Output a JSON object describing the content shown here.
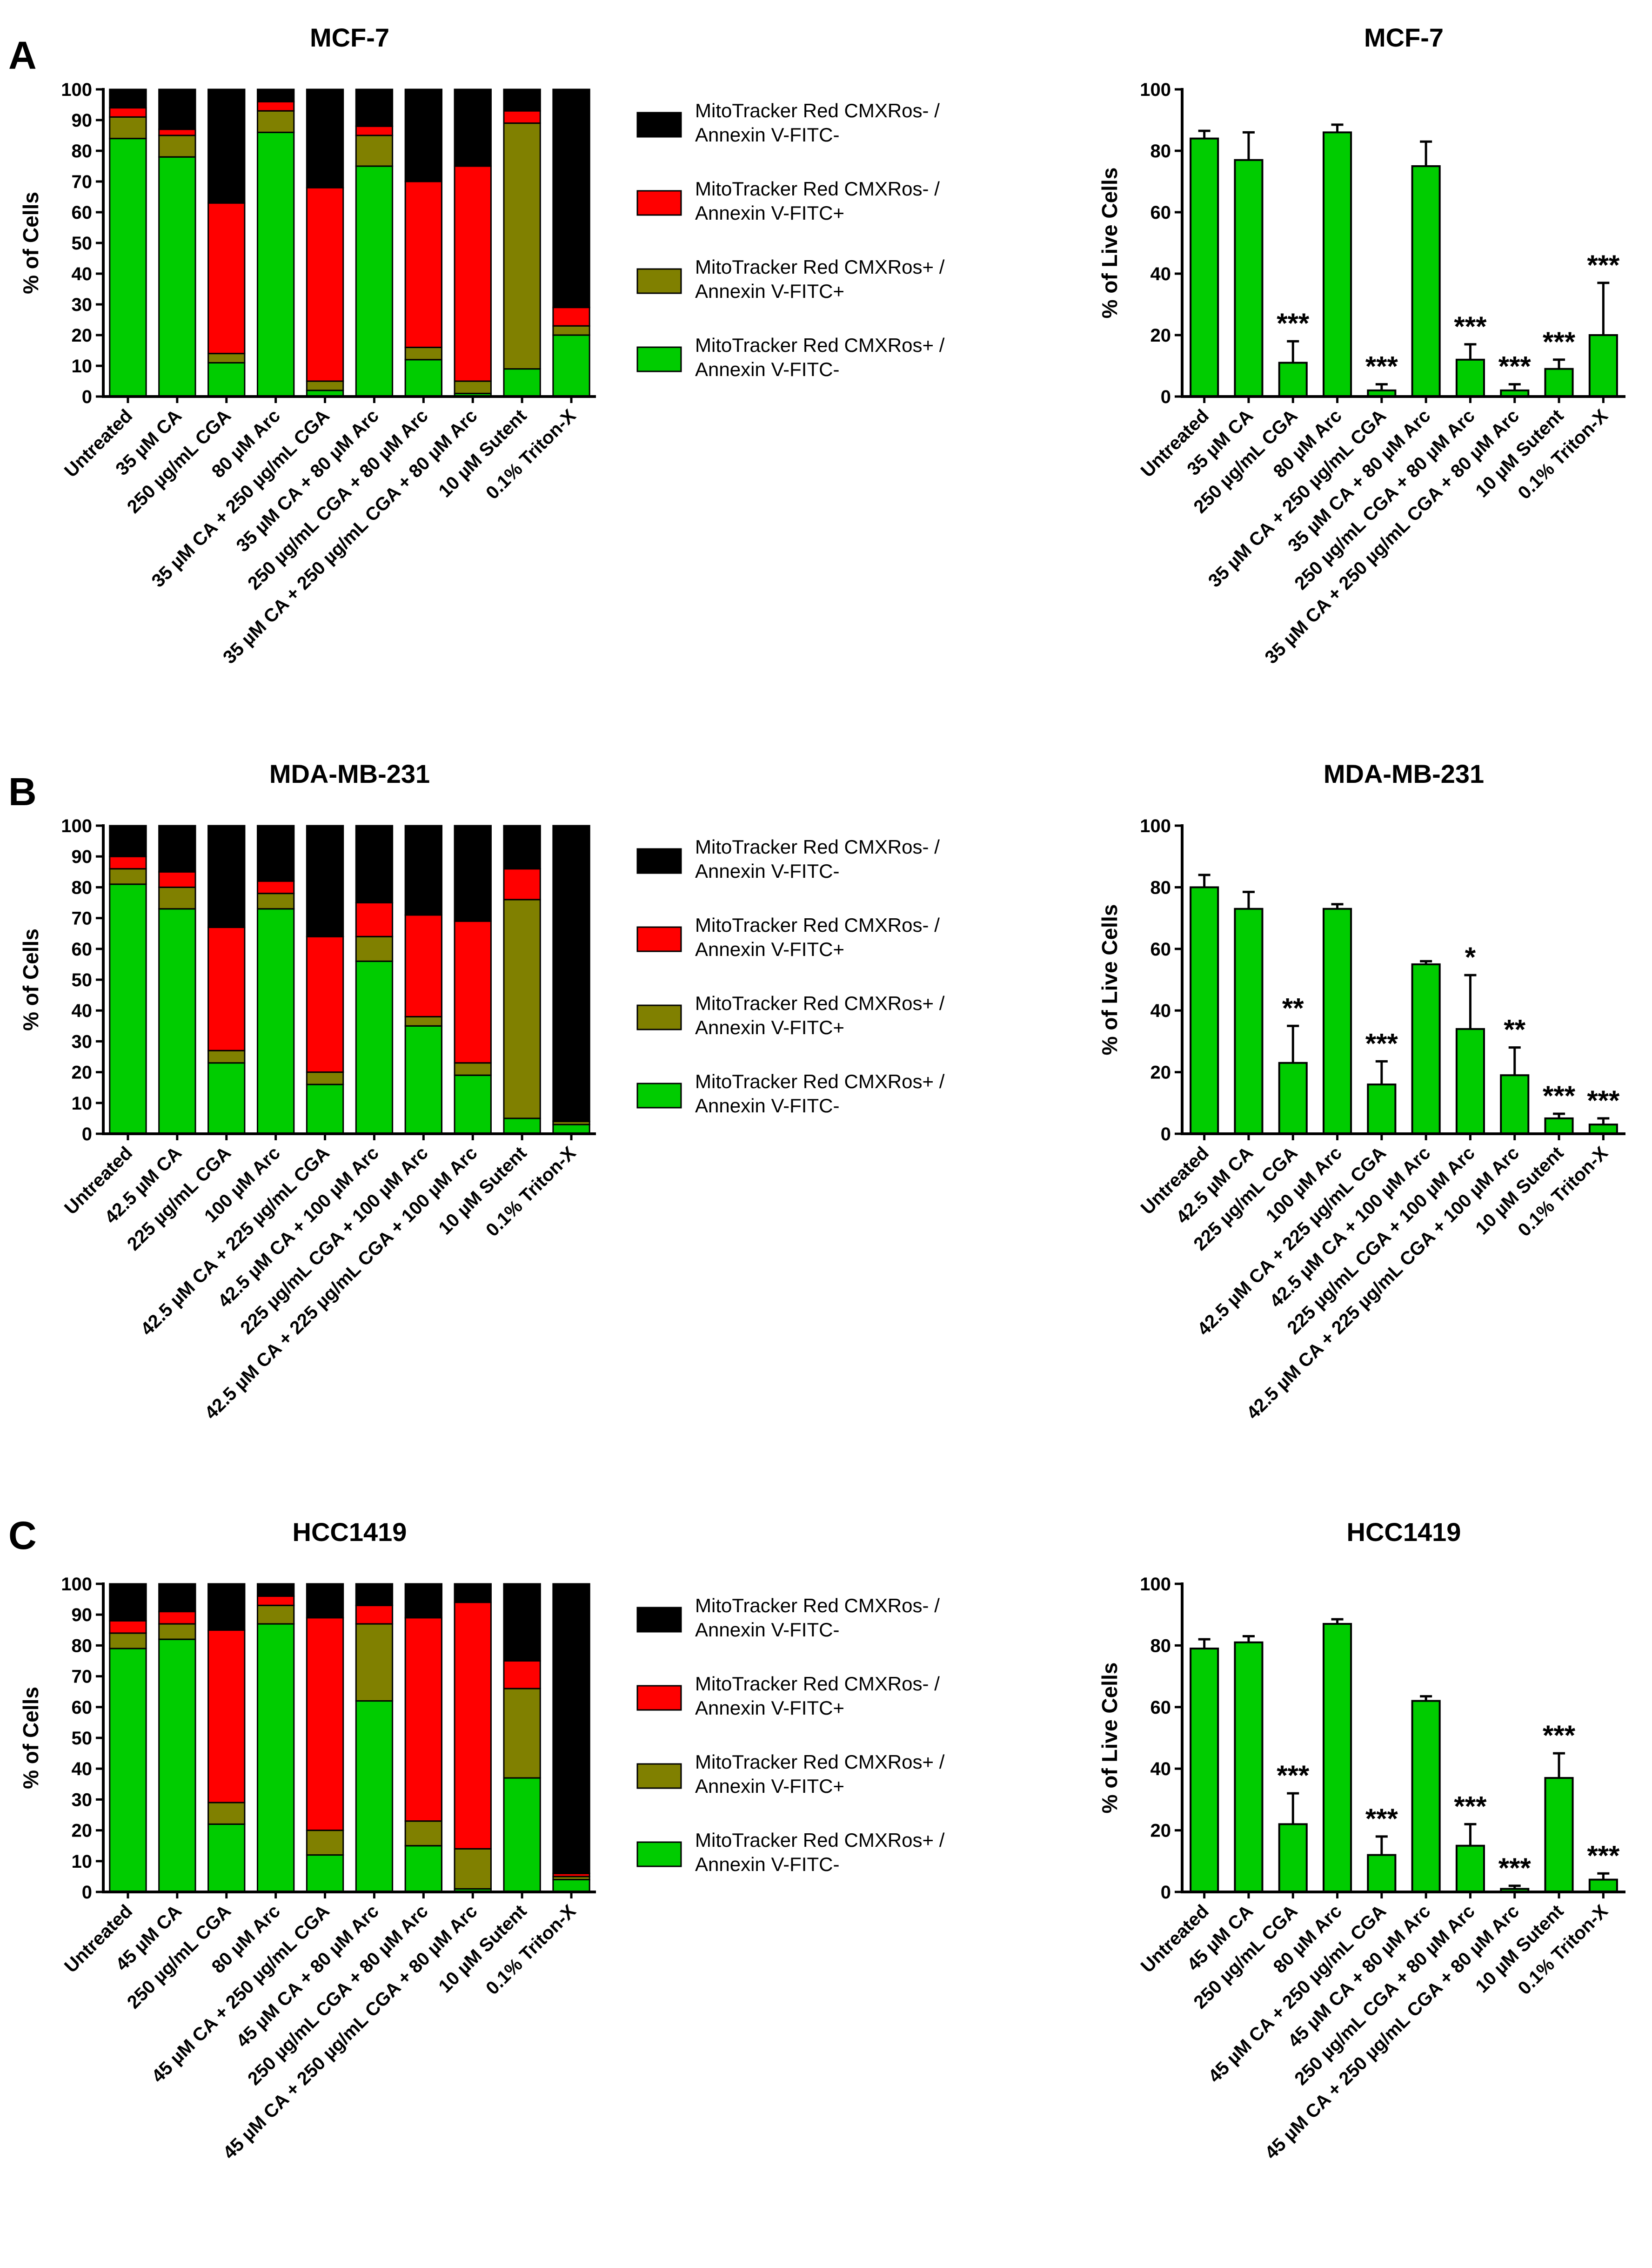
{
  "colors": {
    "black": "#000000",
    "red": "#ff0000",
    "olive": "#808000",
    "green": "#00cc00",
    "axis": "#000000"
  },
  "legend": [
    {
      "line1": "MitoTracker Red CMXRos- /",
      "line2": "Annexin V-FITC-",
      "color": "#000000"
    },
    {
      "line1": "MitoTracker Red CMXRos- /",
      "line2": "Annexin V-FITC+",
      "color": "#ff0000"
    },
    {
      "line1": "MitoTracker Red CMXRos+ /",
      "line2": "Annexin V-FITC+",
      "color": "#808000"
    },
    {
      "line1": "MitoTracker Red CMXRos+ /",
      "line2": "Annexin V-FITC-",
      "color": "#00cc00"
    }
  ],
  "chart_data": [
    {
      "type": "bar",
      "stacked": true,
      "panel": "A",
      "title": "MCF-7",
      "ylabel": "% of Cells",
      "ylim": [
        0,
        100
      ],
      "yticks": [
        0,
        10,
        20,
        30,
        40,
        50,
        60,
        70,
        80,
        90,
        100
      ],
      "categories": [
        "Untreated",
        "35 µM CA",
        "250 µg/mL CGA",
        "80 µM Arc",
        "35 µM CA + 250 µg/mL CGA",
        "35 µM CA + 80 µM Arc",
        "250 µg/mL CGA + 80 µM Arc",
        "35 µM CA + 250 µg/mL CGA + 80 µM Arc",
        "10 µM Sutent",
        "0.1% Triton-X"
      ],
      "series": [
        {
          "name": "MitoTracker Red CMXRos+ / Annexin V-FITC-",
          "color": "#00cc00",
          "values": [
            84,
            78,
            11,
            86,
            2,
            75,
            12,
            1,
            9,
            20
          ]
        },
        {
          "name": "MitoTracker Red CMXRos+ / Annexin V-FITC+",
          "color": "#808000",
          "values": [
            7,
            7,
            3,
            7,
            3,
            10,
            4,
            4,
            80,
            3
          ]
        },
        {
          "name": "MitoTracker Red CMXRos- / Annexin V-FITC+",
          "color": "#ff0000",
          "values": [
            3,
            2,
            49,
            3,
            63,
            3,
            54,
            70,
            4,
            6
          ]
        },
        {
          "name": "MitoTracker Red CMXRos- / Annexin V-FITC-",
          "color": "#000000",
          "values": [
            6,
            13,
            37,
            4,
            32,
            12,
            30,
            25,
            7,
            71
          ]
        }
      ]
    },
    {
      "type": "bar",
      "panel": "A",
      "title": "MCF-7",
      "ylabel": "% of Live Cells",
      "ylim": [
        0,
        100
      ],
      "yticks": [
        0,
        20,
        40,
        60,
        80,
        100
      ],
      "categories": [
        "Untreated",
        "35 µM CA",
        "250 µg/mL CGA",
        "80 µM Arc",
        "35 µM CA + 250 µg/mL CGA",
        "35 µM CA + 80 µM Arc",
        "250 µg/mL CGA + 80 µM Arc",
        "35 µM CA + 250 µg/mL CGA + 80 µM Arc",
        "10 µM Sutent",
        "0.1% Triton-X"
      ],
      "values": [
        84,
        77,
        11,
        86,
        2,
        75,
        12,
        2,
        9,
        20
      ],
      "errors": [
        2.5,
        9,
        7,
        2.5,
        2,
        8,
        5,
        2,
        3,
        17
      ],
      "significance": [
        "",
        "",
        "***",
        "",
        "***",
        "",
        "***",
        "***",
        "***",
        "***"
      ],
      "color": "#00cc00"
    },
    {
      "type": "bar",
      "stacked": true,
      "panel": "B",
      "title": "MDA-MB-231",
      "ylabel": "% of Cells",
      "ylim": [
        0,
        100
      ],
      "yticks": [
        0,
        10,
        20,
        30,
        40,
        50,
        60,
        70,
        80,
        90,
        100
      ],
      "categories": [
        "Untreated",
        "42.5 µM CA",
        "225 µg/mL CGA",
        "100 µM Arc",
        "42.5 µM CA + 225 µg/mL CGA",
        "42.5 µM CA + 100 µM Arc",
        "225 µg/mL CGA + 100 µM Arc",
        "42.5 µM CA + 225 µg/mL CGA + 100 µM Arc",
        "10 µM Sutent",
        "0.1% Triton-X"
      ],
      "series": [
        {
          "name": "MitoTracker Red CMXRos+ / Annexin V-FITC-",
          "color": "#00cc00",
          "values": [
            81,
            73,
            23,
            73,
            16,
            56,
            35,
            19,
            5,
            3
          ]
        },
        {
          "name": "MitoTracker Red CMXRos+ / Annexin V-FITC+",
          "color": "#808000",
          "values": [
            5,
            7,
            4,
            5,
            4,
            8,
            3,
            4,
            71,
            1
          ]
        },
        {
          "name": "MitoTracker Red CMXRos- / Annexin V-FITC+",
          "color": "#ff0000",
          "values": [
            4,
            5,
            40,
            4,
            44,
            11,
            33,
            46,
            10,
            0
          ]
        },
        {
          "name": "MitoTracker Red CMXRos- / Annexin V-FITC-",
          "color": "#000000",
          "values": [
            10,
            15,
            33,
            18,
            36,
            25,
            29,
            31,
            14,
            96
          ]
        }
      ]
    },
    {
      "type": "bar",
      "panel": "B",
      "title": "MDA-MB-231",
      "ylabel": "% of Live Cells",
      "ylim": [
        0,
        100
      ],
      "yticks": [
        0,
        20,
        40,
        60,
        80,
        100
      ],
      "categories": [
        "Untreated",
        "42.5 µM CA",
        "225 µg/mL CGA",
        "100 µM Arc",
        "42.5 µM CA + 225 µg/mL CGA",
        "42.5 µM CA + 100 µM Arc",
        "225 µg/mL CGA + 100 µM Arc",
        "42.5 µM CA + 225 µg/mL CGA + 100 µM Arc",
        "10 µM Sutent",
        "0.1% Triton-X"
      ],
      "values": [
        80,
        73,
        23,
        73,
        16,
        55,
        34,
        19,
        5,
        3
      ],
      "errors": [
        4,
        5.5,
        12,
        1.5,
        7.5,
        1,
        17.5,
        9,
        1.5,
        2
      ],
      "significance": [
        "",
        "",
        "**",
        "",
        "***",
        "",
        "*",
        "**",
        "***",
        "***"
      ],
      "color": "#00cc00"
    },
    {
      "type": "bar",
      "stacked": true,
      "panel": "C",
      "title": "HCC1419",
      "ylabel": "% of Cells",
      "ylim": [
        0,
        100
      ],
      "yticks": [
        0,
        10,
        20,
        30,
        40,
        50,
        60,
        70,
        80,
        90,
        100
      ],
      "categories": [
        "Untreated",
        "45 µM CA",
        "250 µg/mL CGA",
        "80 µM Arc",
        "45 µM CA + 250 µg/mL CGA",
        "45 µM CA + 80 µM Arc",
        "250 µg/mL CGA + 80 µM Arc",
        "45 µM CA + 250 µg/mL CGA + 80 µM Arc",
        "10 µM Sutent",
        "0.1% Triton-X"
      ],
      "series": [
        {
          "name": "MitoTracker Red CMXRos+ / Annexin V-FITC-",
          "color": "#00cc00",
          "values": [
            79,
            82,
            22,
            87,
            12,
            62,
            15,
            1,
            37,
            4
          ]
        },
        {
          "name": "MitoTracker Red CMXRos+ / Annexin V-FITC+",
          "color": "#808000",
          "values": [
            5,
            5,
            7,
            6,
            8,
            25,
            8,
            13,
            29,
            1
          ]
        },
        {
          "name": "MitoTracker Red CMXRos- / Annexin V-FITC+",
          "color": "#ff0000",
          "values": [
            4,
            4,
            56,
            3,
            69,
            6,
            66,
            80,
            9,
            1
          ]
        },
        {
          "name": "MitoTracker Red CMXRos- / Annexin V-FITC-",
          "color": "#000000",
          "values": [
            12,
            9,
            15,
            4,
            11,
            7,
            11,
            6,
            25,
            94
          ]
        }
      ]
    },
    {
      "type": "bar",
      "panel": "C",
      "title": "HCC1419",
      "ylabel": "% of Live Cells",
      "ylim": [
        0,
        100
      ],
      "yticks": [
        0,
        20,
        40,
        60,
        80,
        100
      ],
      "categories": [
        "Untreated",
        "45 µM CA",
        "250 µg/mL CGA",
        "80 µM Arc",
        "45 µM CA + 250 µg/mL CGA",
        "45 µM CA + 80 µM Arc",
        "250 µg/mL CGA + 80 µM Arc",
        "45 µM CA + 250 µg/mL CGA + 80 µM Arc",
        "10 µM Sutent",
        "0.1% Triton-X"
      ],
      "values": [
        79,
        81,
        22,
        87,
        12,
        62,
        15,
        1,
        37,
        4
      ],
      "errors": [
        3,
        2,
        10,
        1.5,
        6,
        1.5,
        7,
        1,
        8,
        2
      ],
      "significance": [
        "",
        "",
        "***",
        "",
        "***",
        "",
        "***",
        "***",
        "***",
        "***"
      ],
      "color": "#00cc00"
    }
  ]
}
